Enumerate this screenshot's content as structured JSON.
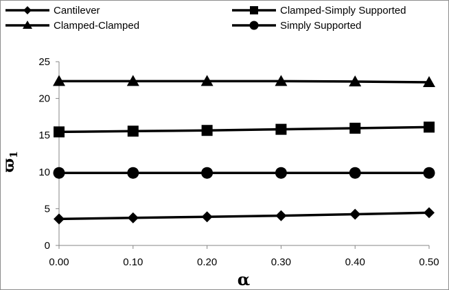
{
  "chart_data": {
    "type": "line",
    "xlabel": "α",
    "ylabel": "ϖ",
    "ylabel_subscript": "1",
    "xlim": [
      0,
      0.5
    ],
    "ylim": [
      0,
      25
    ],
    "x_tick_labels": [
      "0.00",
      "0.10",
      "0.20",
      "0.30",
      "0.40",
      "0.50"
    ],
    "x_tick_values": [
      0,
      0.1,
      0.2,
      0.3,
      0.4,
      0.5
    ],
    "y_tick_labels": [
      "0",
      "5",
      "10",
      "15",
      "20",
      "25"
    ],
    "y_tick_values": [
      0,
      5,
      10,
      15,
      20,
      25
    ],
    "grid": false,
    "legend_position": "top",
    "x": [
      0,
      0.1,
      0.2,
      0.3,
      0.4,
      0.5
    ],
    "series": [
      {
        "name": "Cantilever",
        "marker": "diamond",
        "values": [
          3.6,
          3.75,
          3.9,
          4.05,
          4.25,
          4.45
        ]
      },
      {
        "name": "Clamped-Simply Supported",
        "marker": "square",
        "values": [
          15.45,
          15.55,
          15.65,
          15.8,
          15.95,
          16.1
        ]
      },
      {
        "name": "Clamped-Clamped",
        "marker": "triangle",
        "values": [
          22.35,
          22.35,
          22.35,
          22.35,
          22.3,
          22.2
        ]
      },
      {
        "name": "Simply Supported",
        "marker": "circle",
        "values": [
          9.87,
          9.87,
          9.87,
          9.87,
          9.87,
          9.87
        ]
      }
    ],
    "colors": {
      "line": "#000000",
      "axis": "#868686"
    }
  }
}
